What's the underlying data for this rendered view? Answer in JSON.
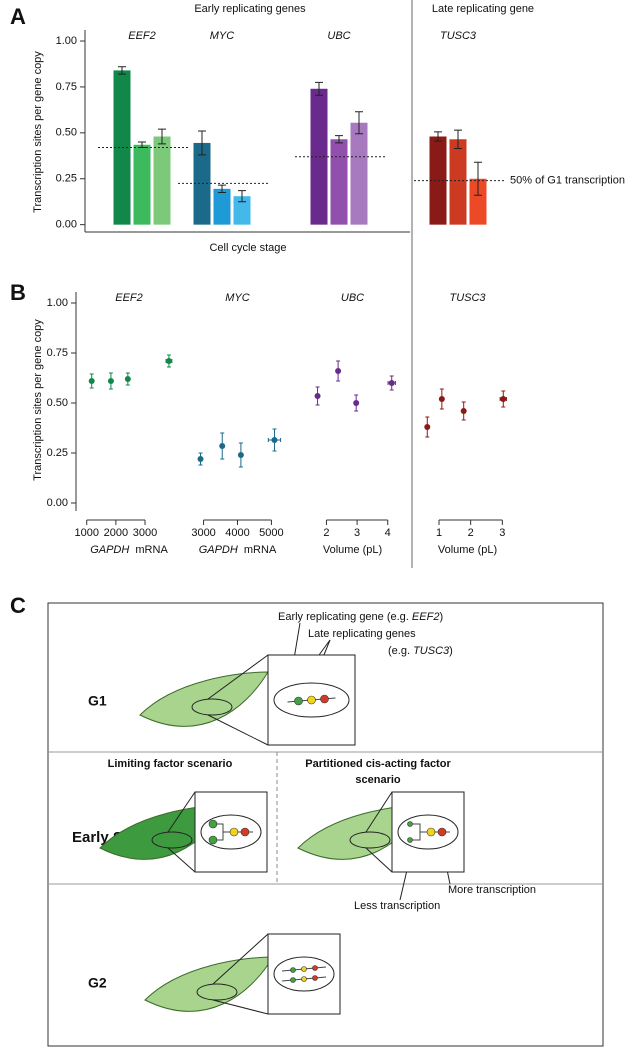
{
  "chart_data": [
    {
      "type": "bar",
      "panel": "A",
      "headers": [
        "Early replicating genes",
        "Late replicating gene"
      ],
      "ylabel": "Transcription sites per gene copy",
      "xlabel": "Cell cycle stage",
      "annotation": "50% of G1 transcription",
      "ylim": [
        -0.04,
        1.06
      ],
      "yticks": [
        {
          "value": 0,
          "label": "0.00"
        },
        {
          "value": 0.25,
          "label": "0.25"
        },
        {
          "value": 0.5,
          "label": "0.50"
        },
        {
          "value": 0.75,
          "label": "0.75"
        },
        {
          "value": 1,
          "label": "1.00"
        }
      ],
      "groups": [
        {
          "name": "EEF2",
          "values": [
            0.84,
            0.435,
            0.48
          ],
          "errors": [
            0.02,
            0.015,
            0.04
          ],
          "colors": [
            "#12874a",
            "#3dba5e",
            "#7cc97a"
          ],
          "reference": 0.42
        },
        {
          "name": "MYC",
          "values": [
            0.445,
            0.195,
            0.155
          ],
          "errors": [
            0.065,
            0.02,
            0.03
          ],
          "colors": [
            "#1b6a8a",
            "#1e9ad6",
            "#45b8ea"
          ],
          "reference": 0.225
        },
        {
          "name": "UBC",
          "values": [
            0.74,
            0.465,
            0.555
          ],
          "errors": [
            0.035,
            0.02,
            0.06
          ],
          "colors": [
            "#6a2a8c",
            "#9250ad",
            "#a77ac0"
          ],
          "reference": 0.37
        },
        {
          "name": "TUSC3",
          "values": [
            0.48,
            0.465,
            0.25
          ],
          "errors": [
            0.025,
            0.05,
            0.09
          ],
          "colors": [
            "#8a1a16",
            "#cc3a22",
            "#ec4a26"
          ],
          "reference": 0.24
        }
      ]
    },
    {
      "type": "scatter",
      "panel": "B",
      "title": "EEF2",
      "ylabel": "Transcription sites per gene copy",
      "ylim": [
        -0.04,
        1.055
      ],
      "yticks": [
        {
          "value": 0,
          "label": "0.00"
        },
        {
          "value": 0.25,
          "label": "0.25"
        },
        {
          "value": 0.5,
          "label": "0.50"
        },
        {
          "value": 0.75,
          "label": "0.75"
        },
        {
          "value": 1,
          "label": "1.00"
        }
      ],
      "xlabel_italic": "GAPDH",
      "xlabel": "mRNA",
      "xlim": [
        700,
        4200
      ],
      "xticks": [
        1000,
        2000,
        3000
      ],
      "x": [
        1170,
        1830,
        2410,
        3820
      ],
      "values": [
        0.61,
        0.61,
        0.62,
        0.71
      ],
      "yerr": [
        0.035,
        0.04,
        0.03,
        0.03
      ],
      "xerr": [
        null,
        null,
        null,
        100
      ],
      "color": "#12874a"
    },
    {
      "type": "scatter",
      "title": "MYC",
      "xlabel_italic": "GAPDH",
      "xlabel": "mRNA",
      "xlim": [
        2600,
        5400
      ],
      "xticks": [
        3000,
        4000,
        5000
      ],
      "x": [
        2910,
        3550,
        4100,
        5090
      ],
      "values": [
        0.22,
        0.285,
        0.24,
        0.315
      ],
      "yerr": [
        0.03,
        0.065,
        0.06,
        0.055
      ],
      "xerr": [
        null,
        null,
        null,
        180
      ],
      "color": "#1b6a8a"
    },
    {
      "type": "scatter",
      "title": "UBC",
      "xlabel": "Volume (pL)",
      "xlim": [
        1.3,
        4.4
      ],
      "xticks": [
        2,
        3,
        4
      ],
      "x": [
        1.71,
        2.38,
        2.97,
        4.13
      ],
      "values": [
        0.535,
        0.66,
        0.5,
        0.6
      ],
      "yerr": [
        0.045,
        0.05,
        0.04,
        0.035
      ],
      "xerr": [
        null,
        null,
        null,
        0.12
      ],
      "color": "#6a2a8c"
    },
    {
      "type": "scatter",
      "title": "TUSC3",
      "xlabel": "Volume (pL)",
      "xlim": [
        0.4,
        3.4
      ],
      "xticks": [
        1,
        2,
        3
      ],
      "x": [
        0.63,
        1.09,
        1.78,
        3.03
      ],
      "values": [
        0.38,
        0.52,
        0.46,
        0.52
      ],
      "yerr": [
        0.05,
        0.05,
        0.045,
        0.04
      ],
      "xerr": [
        null,
        null,
        null,
        0.1
      ],
      "color": "#8a1a16"
    }
  ],
  "diagram": {
    "panel": "C",
    "g1": "G1",
    "early_gene_pre": "Early replicating gene (e.g. ",
    "early_gene_italic": "EEF2",
    "early_gene_post": ")",
    "late_genes": "Late replicating genes",
    "late_genes_pre": "(e.g. ",
    "late_genes_italic": "TUSC3",
    "late_genes_post": ")",
    "limiting": "Limiting factor scenario",
    "partitioned_1": "Partitioned cis-acting factor",
    "partitioned_2": "scenario",
    "early_s": "Early S",
    "more": "More transcription",
    "less": "Less transcription",
    "g2": "G2"
  }
}
